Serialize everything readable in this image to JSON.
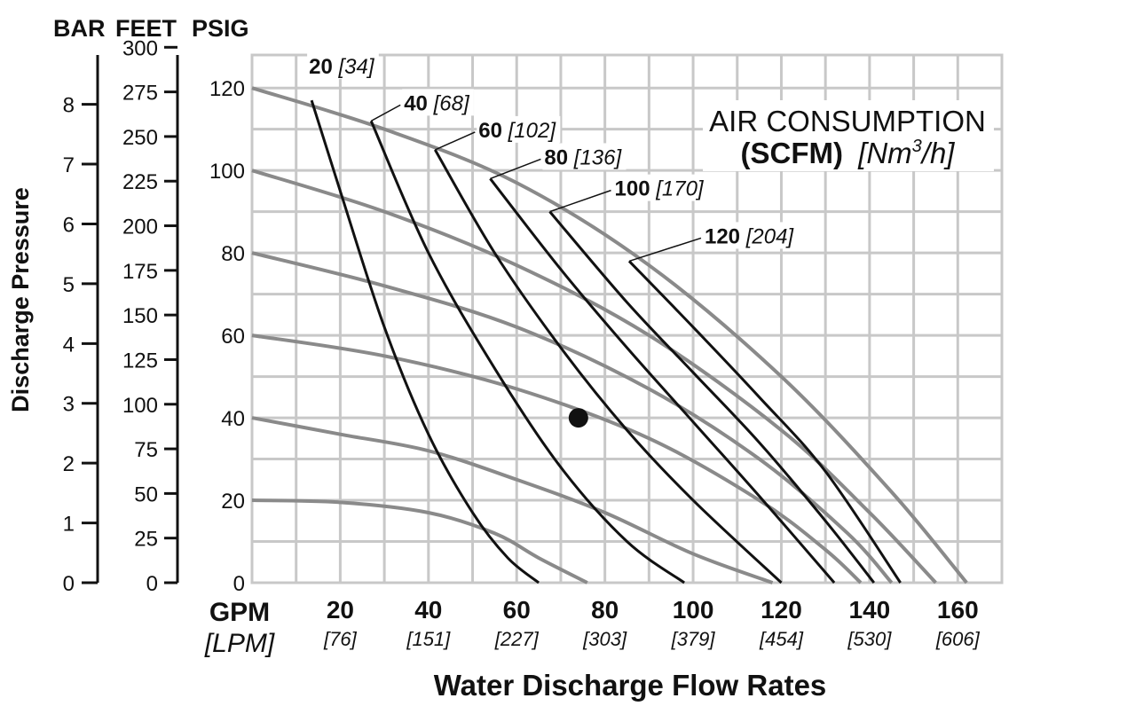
{
  "chart_data": {
    "type": "line",
    "headers": {
      "bar": "BAR",
      "feet": "FEET",
      "psig": "PSIG"
    },
    "ylabel": "Discharge Pressure",
    "xlabel": "Water Discharge Flow Rates",
    "x_unit_label": "GPM",
    "x_unit_label_alt": "[LPM]",
    "legend_title_1": "AIR CONSUMPTION",
    "legend_title_2_bold": "(SCFM)",
    "legend_title_2_ital_a": "[Nm",
    "legend_title_2_sup": "3",
    "legend_title_2_ital_b": "/h]",
    "xlim": [
      0,
      170
    ],
    "ylim": [
      0,
      128
    ],
    "grid": true,
    "x_ticks": [
      {
        "gpm": "20",
        "lpm": "[76]",
        "value": 20
      },
      {
        "gpm": "40",
        "lpm": "[151]",
        "value": 40
      },
      {
        "gpm": "60",
        "lpm": "[227]",
        "value": 60
      },
      {
        "gpm": "80",
        "lpm": "[303]",
        "value": 80
      },
      {
        "gpm": "100",
        "lpm": "[379]",
        "value": 100
      },
      {
        "gpm": "120",
        "lpm": "[454]",
        "value": 120
      },
      {
        "gpm": "140",
        "lpm": "[530]",
        "value": 140
      },
      {
        "gpm": "160",
        "lpm": "[606]",
        "value": 160
      }
    ],
    "psig_ticks": [
      "0",
      "20",
      "40",
      "60",
      "80",
      "100",
      "120"
    ],
    "feet_ticks": [
      "0",
      "25",
      "50",
      "75",
      "100",
      "125",
      "150",
      "175",
      "200",
      "225",
      "250",
      "275",
      "300"
    ],
    "bar_ticks": [
      "0",
      "1",
      "2",
      "3",
      "4",
      "5",
      "6",
      "7",
      "8"
    ],
    "pump_curves": [
      {
        "points": [
          [
            0,
            20
          ],
          [
            20,
            19.5
          ],
          [
            40,
            17
          ],
          [
            55,
            12
          ],
          [
            65,
            6
          ],
          [
            76,
            0
          ]
        ]
      },
      {
        "points": [
          [
            0,
            40
          ],
          [
            20,
            36
          ],
          [
            40,
            32
          ],
          [
            60,
            25
          ],
          [
            80,
            17
          ],
          [
            100,
            7
          ],
          [
            118,
            0
          ]
        ]
      },
      {
        "points": [
          [
            0,
            60
          ],
          [
            30,
            55
          ],
          [
            60,
            47
          ],
          [
            90,
            35
          ],
          [
            115,
            20
          ],
          [
            130,
            8
          ],
          [
            138,
            0
          ]
        ]
      },
      {
        "points": [
          [
            0,
            80
          ],
          [
            30,
            72
          ],
          [
            60,
            62
          ],
          [
            90,
            47
          ],
          [
            115,
            30
          ],
          [
            135,
            12
          ],
          [
            145,
            0
          ]
        ]
      },
      {
        "points": [
          [
            0,
            100
          ],
          [
            30,
            90
          ],
          [
            60,
            77
          ],
          [
            90,
            60
          ],
          [
            120,
            37
          ],
          [
            140,
            17
          ],
          [
            155,
            0
          ]
        ]
      },
      {
        "points": [
          [
            0,
            120
          ],
          [
            30,
            110
          ],
          [
            60,
            97
          ],
          [
            90,
            77
          ],
          [
            120,
            50
          ],
          [
            145,
            22
          ],
          [
            162,
            0
          ]
        ]
      }
    ],
    "air_series": [
      {
        "scfm": "20",
        "nm3h": "[34]",
        "points": [
          [
            13.5,
            117
          ],
          [
            20,
            95
          ],
          [
            30,
            62
          ],
          [
            40,
            36
          ],
          [
            50,
            17
          ],
          [
            58,
            6
          ],
          [
            65,
            0
          ]
        ]
      },
      {
        "scfm": "40",
        "nm3h": "[68]",
        "points": [
          [
            27,
            112
          ],
          [
            40,
            80
          ],
          [
            55,
            52
          ],
          [
            70,
            28
          ],
          [
            85,
            10
          ],
          [
            98,
            0
          ]
        ]
      },
      {
        "scfm": "60",
        "nm3h": "[102]",
        "points": [
          [
            41.5,
            105
          ],
          [
            55,
            80
          ],
          [
            70,
            57
          ],
          [
            85,
            37
          ],
          [
            100,
            20
          ],
          [
            120,
            0
          ]
        ]
      },
      {
        "scfm": "80",
        "nm3h": "[136]",
        "points": [
          [
            54,
            98
          ],
          [
            70,
            76
          ],
          [
            85,
            57
          ],
          [
            100,
            39
          ],
          [
            115,
            21
          ],
          [
            132,
            0
          ]
        ]
      },
      {
        "scfm": "100",
        "nm3h": "[170]",
        "points": [
          [
            67.5,
            90
          ],
          [
            85,
            68
          ],
          [
            100,
            51
          ],
          [
            115,
            34
          ],
          [
            130,
            15
          ],
          [
            141,
            0
          ]
        ]
      },
      {
        "scfm": "120",
        "nm3h": "[204]",
        "points": [
          [
            85.5,
            78
          ],
          [
            100,
            62
          ],
          [
            115,
            45
          ],
          [
            130,
            27
          ],
          [
            147,
            0
          ]
        ]
      }
    ],
    "marker": {
      "x": 74,
      "y": 40
    }
  }
}
